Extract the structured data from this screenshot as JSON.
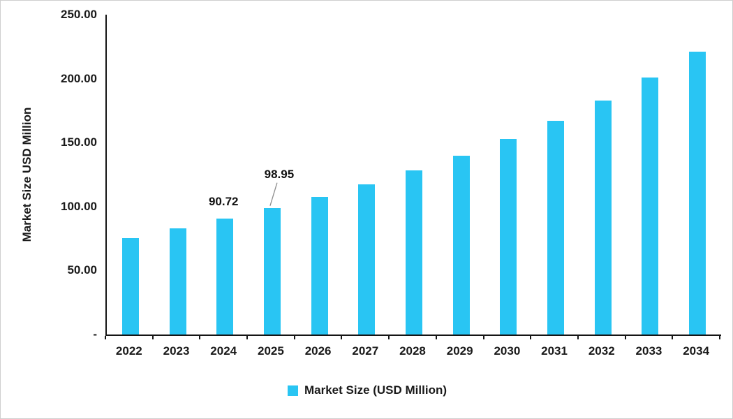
{
  "chart_data": {
    "type": "bar",
    "title": "",
    "categories": [
      "2022",
      "2023",
      "2024",
      "2025",
      "2026",
      "2027",
      "2028",
      "2029",
      "2030",
      "2031",
      "2032",
      "2033",
      "2034"
    ],
    "series": [
      {
        "name": "Market Size (USD Million)",
        "values": [
          75.5,
          82.7,
          90.72,
          98.95,
          107.5,
          117.5,
          128.5,
          140.0,
          153.0,
          167.0,
          183.0,
          201.0,
          221.0
        ]
      }
    ],
    "xlabel": "",
    "ylabel": "Market Size USD Million",
    "ylim": [
      0,
      250
    ],
    "grid": false,
    "legend_position": "bottom",
    "bar_color": "#29C5F3",
    "axis_color": "#151515",
    "leader_line_color": "#8c8c8c",
    "y_ticks": [
      {
        "value": 250,
        "label": "250.00"
      },
      {
        "value": 200,
        "label": "200.00"
      },
      {
        "value": 150,
        "label": "150.00"
      },
      {
        "value": 100,
        "label": "100.00"
      },
      {
        "value": 50,
        "label": "50.00"
      },
      {
        "value": 0,
        "label": "-"
      }
    ],
    "annotations": [
      {
        "category": "2024",
        "label": "90.72",
        "leader": false
      },
      {
        "category": "2025",
        "label": "98.95",
        "leader": true
      }
    ]
  },
  "axis": {
    "y_title": "Market Size USD Million"
  },
  "legend": {
    "label": "Market Size (USD Million)"
  }
}
